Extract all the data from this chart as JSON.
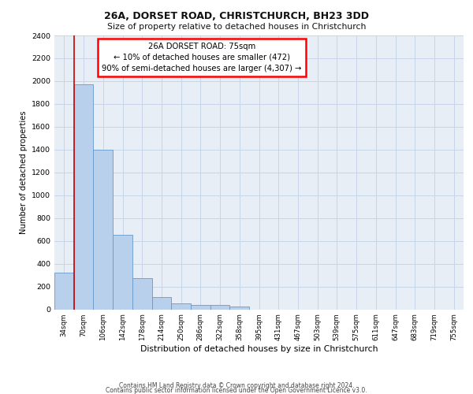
{
  "title1": "26A, DORSET ROAD, CHRISTCHURCH, BH23 3DD",
  "title2": "Size of property relative to detached houses in Christchurch",
  "xlabel": "Distribution of detached houses by size in Christchurch",
  "ylabel": "Number of detached properties",
  "bar_labels": [
    "34sqm",
    "70sqm",
    "106sqm",
    "142sqm",
    "178sqm",
    "214sqm",
    "250sqm",
    "286sqm",
    "322sqm",
    "358sqm",
    "395sqm",
    "431sqm",
    "467sqm",
    "503sqm",
    "539sqm",
    "575sqm",
    "611sqm",
    "647sqm",
    "683sqm",
    "719sqm",
    "755sqm"
  ],
  "bar_values": [
    320,
    1975,
    1400,
    650,
    275,
    105,
    50,
    40,
    35,
    22,
    0,
    0,
    0,
    0,
    0,
    0,
    0,
    0,
    0,
    0,
    0
  ],
  "bar_color": "#b8d0ec",
  "bar_edgecolor": "#6699cc",
  "annotation_text": "26A DORSET ROAD: 75sqm\n← 10% of detached houses are smaller (472)\n90% of semi-detached houses are larger (4,307) →",
  "vline_x": 1,
  "vline_color": "#cc0000",
  "ylim": [
    0,
    2400
  ],
  "yticks": [
    0,
    200,
    400,
    600,
    800,
    1000,
    1200,
    1400,
    1600,
    1800,
    2000,
    2200,
    2400
  ],
  "grid_color": "#c8d4e8",
  "bg_color": "#e8eef6",
  "footer1": "Contains HM Land Registry data © Crown copyright and database right 2024.",
  "footer2": "Contains public sector information licensed under the Open Government Licence v3.0."
}
